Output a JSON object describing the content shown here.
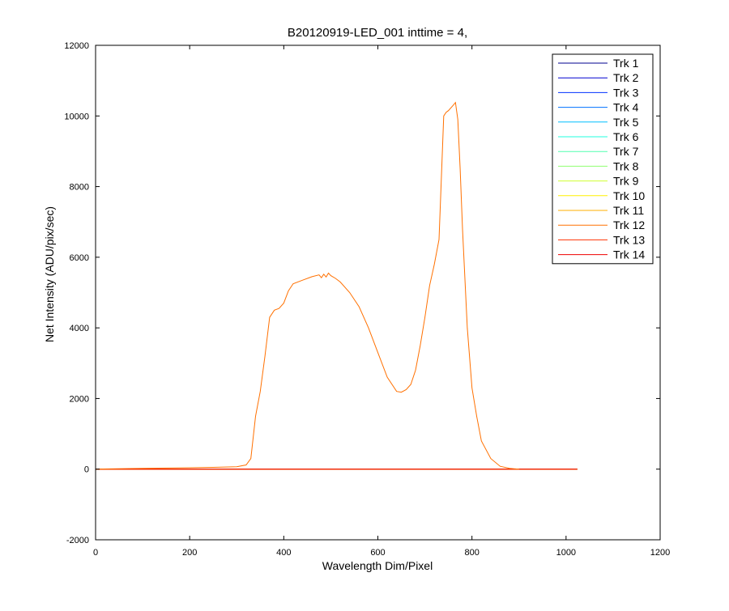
{
  "chart_data": {
    "type": "line",
    "title": "B20120919-LED_001 inttime = 4,",
    "xlabel": "Wavelength Dim/Pixel",
    "ylabel": "Net Intensity (ADU/pix/sec)",
    "xlim": [
      0,
      1200
    ],
    "ylim": [
      -2000,
      12000
    ],
    "xticks": [
      0,
      200,
      400,
      600,
      800,
      1000,
      1200
    ],
    "yticks": [
      -2000,
      0,
      2000,
      4000,
      6000,
      8000,
      10000,
      12000
    ],
    "grid": false,
    "legend_position": "top-right",
    "flat_series_range": [
      0,
      1024
    ],
    "signal_series": "Trk 12",
    "series": [
      {
        "name": "Trk 1",
        "color": "#00008F"
      },
      {
        "name": "Trk 2",
        "color": "#0000D0"
      },
      {
        "name": "Trk 3",
        "color": "#0030FF"
      },
      {
        "name": "Trk 4",
        "color": "#0070FF"
      },
      {
        "name": "Trk 5",
        "color": "#00BFFF"
      },
      {
        "name": "Trk 6",
        "color": "#20FFDF"
      },
      {
        "name": "Trk 7",
        "color": "#50FFAF"
      },
      {
        "name": "Trk 8",
        "color": "#8FFF70"
      },
      {
        "name": "Trk 9",
        "color": "#CFFF30"
      },
      {
        "name": "Trk 10",
        "color": "#FFEF00"
      },
      {
        "name": "Trk 11",
        "color": "#FFAF00"
      },
      {
        "name": "Trk 12",
        "color": "#FF7000",
        "x": [
          0,
          100,
          200,
          250,
          300,
          320,
          330,
          340,
          350,
          360,
          370,
          380,
          390,
          400,
          410,
          420,
          440,
          460,
          475,
          480,
          485,
          490,
          495,
          500,
          510,
          520,
          540,
          560,
          580,
          600,
          620,
          640,
          650,
          660,
          670,
          680,
          690,
          700,
          710,
          720,
          730,
          740,
          745,
          750,
          760,
          765,
          770,
          775,
          780,
          790,
          800,
          810,
          820,
          840,
          860,
          880,
          900
        ],
        "y": [
          0,
          20,
          40,
          50,
          70,
          120,
          300,
          1500,
          2200,
          3200,
          4300,
          4500,
          4550,
          4700,
          5050,
          5250,
          5350,
          5450,
          5500,
          5420,
          5520,
          5440,
          5550,
          5480,
          5400,
          5300,
          5000,
          4600,
          4000,
          3300,
          2600,
          2200,
          2180,
          2250,
          2400,
          2800,
          3500,
          4300,
          5200,
          5800,
          6500,
          10000,
          10100,
          10150,
          10300,
          10380,
          9900,
          8500,
          6800,
          4000,
          2300,
          1500,
          800,
          300,
          80,
          20,
          0
        ]
      },
      {
        "name": "Trk 13",
        "color": "#FF3000"
      },
      {
        "name": "Trk 14",
        "color": "#EF0000"
      }
    ]
  }
}
